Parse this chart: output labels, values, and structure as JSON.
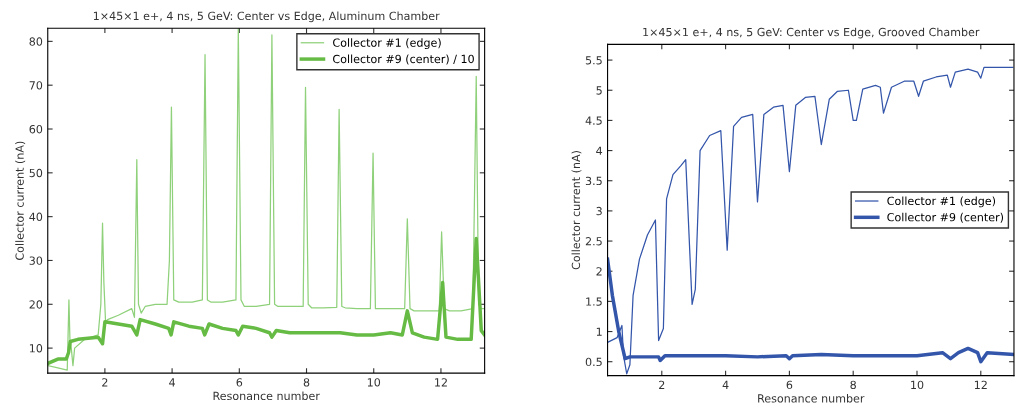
{
  "chart_data": [
    {
      "type": "line",
      "title": "1×45×1 e+, 4 ns, 5 GeV: Center vs Edge, Aluminum Chamber",
      "xlabel": "Resonance number",
      "ylabel": "Collector current (nA)",
      "xlim": [
        0.3,
        13.3
      ],
      "ylim": [
        4.3,
        83
      ],
      "xticks": [
        2,
        4,
        6,
        8,
        10,
        12
      ],
      "yticks": [
        10,
        20,
        30,
        40,
        50,
        60,
        70,
        80
      ],
      "legend": "top right",
      "grid": false,
      "series": [
        {
          "name": "Collector #1 (edge)",
          "color": "#8fd17a",
          "x": [
            0.3,
            0.6,
            0.88,
            0.93,
            0.96,
            1.0,
            1.05,
            1.1,
            1.4,
            1.8,
            1.88,
            1.93,
            1.97,
            2.02,
            2.08,
            2.4,
            2.8,
            2.88,
            2.95,
            3.0,
            3.08,
            3.2,
            3.5,
            3.85,
            3.92,
            3.98,
            4.05,
            4.2,
            4.6,
            4.9,
            4.98,
            5.05,
            5.15,
            5.5,
            5.9,
            5.97,
            6.05,
            6.15,
            6.5,
            6.9,
            6.97,
            7.05,
            7.15,
            7.5,
            7.9,
            7.97,
            8.05,
            8.15,
            8.5,
            8.9,
            8.97,
            9.05,
            9.15,
            9.5,
            9.9,
            9.98,
            10.05,
            10.15,
            10.5,
            10.92,
            11.0,
            11.08,
            11.2,
            11.6,
            11.95,
            12.02,
            12.1,
            12.25,
            12.6,
            12.95,
            13.05,
            13.12,
            13.2,
            13.3
          ],
          "values": [
            6,
            5.5,
            5,
            21,
            12,
            10,
            6,
            10,
            12,
            13,
            20,
            38.5,
            25,
            16,
            16.5,
            17.5,
            19,
            17,
            53,
            20,
            18,
            19.5,
            20,
            20,
            30,
            65,
            21,
            20.5,
            20.5,
            21,
            77,
            21,
            20.5,
            20.5,
            21,
            83,
            21,
            19.5,
            19.5,
            20,
            81.5,
            20,
            19.5,
            19.5,
            19.5,
            69.5,
            20,
            19.2,
            19.2,
            19.3,
            64.5,
            19.5,
            19.2,
            19,
            19,
            54.5,
            19,
            19,
            19,
            19,
            39.5,
            19,
            18.5,
            18.5,
            18.5,
            36.5,
            19,
            18.5,
            18.5,
            19,
            72,
            20,
            19,
            19
          ]
        },
        {
          "name": "Collector #9 (center) / 10",
          "color": "#66bb44",
          "x": [
            0.3,
            0.6,
            0.85,
            0.92,
            0.97,
            1.2,
            1.8,
            1.93,
            2.0,
            2.4,
            2.8,
            2.95,
            3.05,
            3.5,
            3.9,
            3.97,
            4.05,
            4.5,
            4.9,
            4.97,
            5.1,
            5.5,
            5.9,
            5.97,
            6.1,
            6.5,
            6.9,
            6.97,
            7.1,
            7.5,
            8.0,
            8.5,
            9.0,
            9.5,
            10.0,
            10.5,
            10.85,
            11.0,
            11.15,
            11.5,
            11.9,
            12.05,
            12.15,
            12.5,
            12.9,
            13.05,
            13.2,
            13.3
          ],
          "values": [
            6.5,
            7.5,
            7.5,
            9,
            11.5,
            12,
            12.5,
            11,
            16,
            15.5,
            15,
            13,
            16.5,
            15.5,
            14.5,
            13,
            16,
            15,
            14.5,
            13,
            15.5,
            14.5,
            14,
            13,
            15,
            14.5,
            13.5,
            12.5,
            14,
            13.5,
            13.5,
            13.5,
            13.5,
            13,
            13,
            13.5,
            13,
            18.5,
            13.5,
            12.5,
            12,
            25,
            12.5,
            12,
            12,
            35,
            14,
            13
          ]
        }
      ]
    },
    {
      "type": "line",
      "title": "1×45×1 e+, 4 ns, 5 GeV: Center vs Edge, Grooved Chamber",
      "xlabel": "Resonance number",
      "ylabel": "Collector current (nA)",
      "xlim": [
        0.3,
        13.04
      ],
      "ylim": [
        0.27,
        5.76
      ],
      "xticks": [
        2,
        4,
        6,
        8,
        10,
        12
      ],
      "yticks": [
        0.5,
        1,
        1.5,
        2,
        2.5,
        3,
        3.5,
        4,
        4.5,
        5,
        5.5
      ],
      "legend": "right",
      "grid": false,
      "series": [
        {
          "name": "Collector #1 (edge)",
          "color": "#3355aa",
          "x": [
            0.3,
            0.6,
            0.75,
            0.8,
            0.9,
            1.0,
            1.1,
            1.3,
            1.55,
            1.8,
            1.9,
            2.05,
            2.15,
            2.35,
            2.6,
            2.75,
            2.95,
            3.05,
            3.2,
            3.5,
            3.85,
            4.05,
            4.25,
            4.5,
            4.85,
            5.0,
            5.2,
            5.5,
            5.8,
            6.0,
            6.2,
            6.5,
            6.8,
            7.0,
            7.25,
            7.5,
            7.85,
            8.0,
            8.1,
            8.3,
            8.7,
            8.85,
            8.95,
            9.2,
            9.6,
            9.9,
            10.05,
            10.2,
            10.6,
            10.95,
            11.05,
            11.2,
            11.6,
            11.9,
            12.0,
            12.1,
            12.5,
            13.0
          ],
          "values": [
            0.82,
            0.9,
            1.1,
            0.6,
            0.3,
            0.45,
            1.6,
            2.2,
            2.6,
            2.85,
            0.85,
            1.05,
            3.2,
            3.6,
            3.75,
            3.85,
            1.45,
            1.7,
            4.0,
            4.25,
            4.33,
            2.35,
            4.4,
            4.55,
            4.6,
            3.15,
            4.6,
            4.72,
            4.75,
            3.65,
            4.75,
            4.88,
            4.9,
            4.1,
            4.85,
            4.98,
            5.0,
            4.5,
            4.5,
            5.02,
            5.08,
            5.05,
            4.62,
            5.05,
            5.15,
            5.15,
            4.9,
            5.15,
            5.22,
            5.25,
            5.05,
            5.3,
            5.35,
            5.3,
            5.2,
            5.38,
            5.38,
            5.38
          ]
        },
        {
          "name": "Collector #9 (center)",
          "color": "#3355aa",
          "x": [
            0.3,
            0.45,
            0.65,
            0.85,
            1.0,
            1.5,
            1.9,
            1.95,
            2.1,
            3.0,
            4.0,
            5.0,
            5.9,
            6.0,
            6.1,
            7.0,
            8.0,
            9.0,
            10.0,
            10.8,
            11.05,
            11.3,
            11.6,
            11.9,
            12.0,
            12.2,
            13.0
          ],
          "values": [
            2.2,
            1.6,
            1.0,
            0.55,
            0.58,
            0.58,
            0.58,
            0.52,
            0.6,
            0.6,
            0.6,
            0.58,
            0.6,
            0.55,
            0.6,
            0.62,
            0.6,
            0.6,
            0.6,
            0.65,
            0.55,
            0.65,
            0.72,
            0.65,
            0.5,
            0.65,
            0.62
          ]
        }
      ]
    }
  ]
}
